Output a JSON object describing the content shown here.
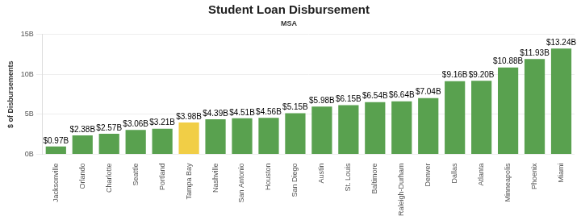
{
  "chart_data": {
    "type": "bar",
    "title": "Student Loan Disbursement",
    "subtitle": "MSA",
    "y_label": "$ of Disbursements",
    "categories": [
      "Jacksonville",
      "Orlando",
      "Charlotte",
      "Seattle",
      "Portland",
      "Tampa Bay",
      "Nashville",
      "San Antonio",
      "Houston",
      "San Diego",
      "Austin",
      "St. Louis",
      "Baltimore",
      "Raleigh-Durham",
      "Denver",
      "Dallas",
      "Atlanta",
      "Minneapolis",
      "Phoenix",
      "Miami"
    ],
    "values": [
      0.97,
      2.38,
      2.57,
      3.06,
      3.21,
      3.98,
      4.39,
      4.51,
      4.56,
      5.15,
      5.98,
      6.15,
      6.54,
      6.64,
      7.04,
      9.16,
      9.2,
      10.88,
      11.93,
      13.24
    ],
    "value_labels": [
      "$0.97B",
      "$2.38B",
      "$2.57B",
      "$3.06B",
      "$3.21B",
      "$3.98B",
      "$4.39B",
      "$4.51B",
      "$4.56B",
      "$5.15B",
      "$5.98B",
      "$6.15B",
      "$6.54B",
      "$6.64B",
      "$7.04B",
      "$9.16B",
      "$9.20B",
      "$10.88B",
      "$11.93B",
      "$13.24B"
    ],
    "colors": [
      "#59a14f",
      "#59a14f",
      "#59a14f",
      "#59a14f",
      "#59a14f",
      "#f1ce46",
      "#59a14f",
      "#59a14f",
      "#59a14f",
      "#59a14f",
      "#59a14f",
      "#59a14f",
      "#59a14f",
      "#59a14f",
      "#59a14f",
      "#59a14f",
      "#59a14f",
      "#59a14f",
      "#59a14f",
      "#59a14f"
    ],
    "ylim": [
      0,
      15
    ],
    "yticks": [
      {
        "value": 0,
        "label": "0B"
      },
      {
        "value": 5,
        "label": "5B"
      },
      {
        "value": 10,
        "label": "10B"
      },
      {
        "value": 15,
        "label": "15B"
      }
    ],
    "grid": true,
    "data_labels": true
  }
}
